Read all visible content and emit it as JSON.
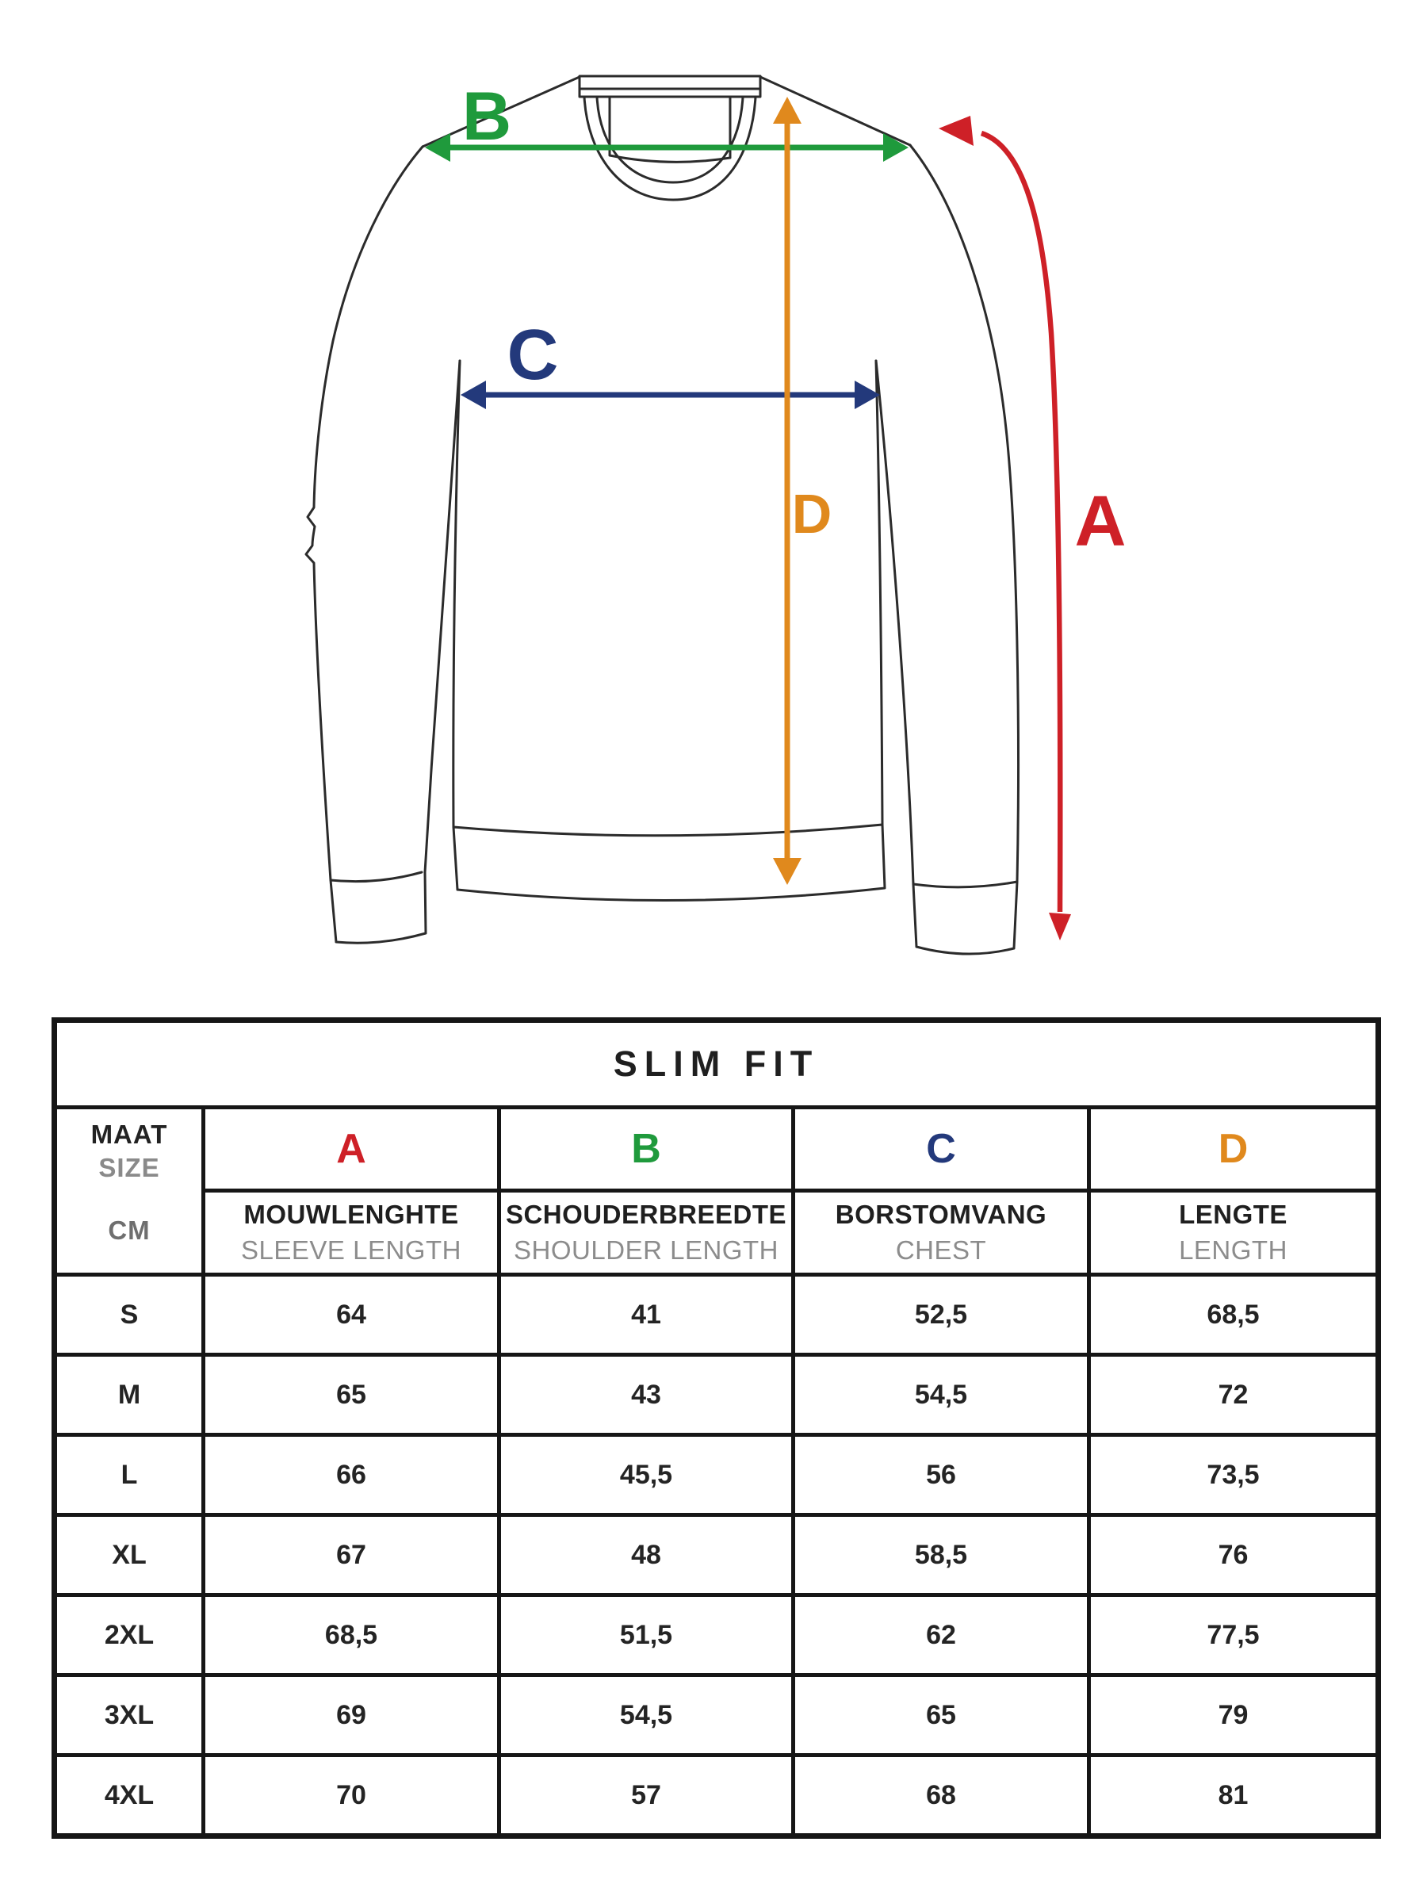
{
  "diagram": {
    "labels": {
      "a": "A",
      "b": "B",
      "c": "C",
      "d": "D"
    },
    "colors": {
      "a": "#ce2027",
      "b": "#1f9a3c",
      "c": "#23397b",
      "d": "#e0891d"
    },
    "garment": "crew-neck sweater line drawing with measurement arrows"
  },
  "table": {
    "title": "SLIM FIT",
    "size_header": {
      "line1": "MAAT",
      "line2": "SIZE",
      "unit": "CM"
    },
    "columns": [
      {
        "letter": "A",
        "color": "#ce2027",
        "dutch": "MOUWLENGHTE",
        "english": "SLEEVE LENGTH"
      },
      {
        "letter": "B",
        "color": "#1f9a3c",
        "dutch": "SCHOUDERBREEDTE",
        "english": "SHOULDER LENGTH"
      },
      {
        "letter": "C",
        "color": "#23397b",
        "dutch": "BORSTOMVANG",
        "english": "CHEST"
      },
      {
        "letter": "D",
        "color": "#e0891d",
        "dutch": "LENGTE",
        "english": "LENGTH"
      }
    ],
    "rows": [
      {
        "size": "S",
        "values": [
          "64",
          "41",
          "52,5",
          "68,5"
        ]
      },
      {
        "size": "M",
        "values": [
          "65",
          "43",
          "54,5",
          "72"
        ]
      },
      {
        "size": "L",
        "values": [
          "66",
          "45,5",
          "56",
          "73,5"
        ]
      },
      {
        "size": "XL",
        "values": [
          "67",
          "48",
          "58,5",
          "76"
        ]
      },
      {
        "size": "2XL",
        "values": [
          "68,5",
          "51,5",
          "62",
          "77,5"
        ]
      },
      {
        "size": "3XL",
        "values": [
          "69",
          "54,5",
          "65",
          "79"
        ]
      },
      {
        "size": "4XL",
        "values": [
          "70",
          "57",
          "68",
          "81"
        ]
      }
    ]
  }
}
